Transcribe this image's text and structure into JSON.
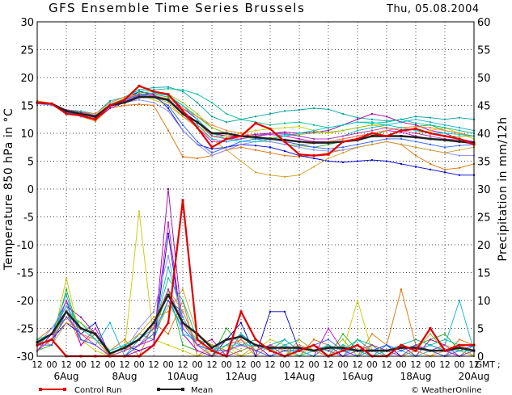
{
  "header": {
    "title": "GFS Ensemble Time Series Brussels",
    "date": "Thu, 05.08.2004"
  },
  "legend": {
    "control_label": "Control Run",
    "mean_label": "Mean",
    "credit": "© WeatherOnline"
  },
  "colors": {
    "control": "#e00000",
    "mean": "#202020",
    "members": [
      "#00a0a0",
      "#20b020",
      "#e07000",
      "#0000d0",
      "#a000a0",
      "#c8c800",
      "#00c090",
      "#d000d0",
      "#8888ff",
      "#d0a020",
      "#10b0d0",
      "#90c020",
      "#ff8040",
      "#3060ff",
      "#00d0d0",
      "#b040b0"
    ]
  },
  "chart_data": {
    "type": "line",
    "x_unit": "12-hour steps from 05 Aug 12 GMT to 20 Aug 12 GMT (31 steps)",
    "x_tick_labels": [
      "12",
      "00",
      "12",
      "00",
      "12",
      "00",
      "12",
      "00",
      "12",
      "00",
      "12",
      "00",
      "12",
      "00",
      "12",
      "00",
      "12",
      "00",
      "12",
      "00",
      "12",
      "00",
      "12",
      "00",
      "12",
      "00",
      "12",
      "00",
      "12",
      "00",
      "12"
    ],
    "x_day_labels": [
      "6Aug",
      "8Aug",
      "10Aug",
      "12Aug",
      "14Aug",
      "16Aug",
      "18Aug",
      "20Aug"
    ],
    "x_day_positions": [
      2,
      6,
      10,
      14,
      18,
      22,
      26,
      30
    ],
    "gmt_label": "GMT ;",
    "y_left": {
      "label": "Temperature 850 hPa in °C",
      "range": [
        -30,
        30
      ],
      "ticks": [
        30,
        25,
        20,
        15,
        10,
        5,
        0,
        -5,
        -10,
        -15,
        -20,
        -25,
        -30
      ]
    },
    "y_right": {
      "label": "Precipitation in mm/12h",
      "range": [
        0,
        60
      ],
      "ticks": [
        60,
        55,
        50,
        45,
        40,
        35,
        30,
        25,
        20,
        15,
        10,
        5,
        0
      ]
    },
    "grid": true,
    "temperature": {
      "control": [
        15.5,
        15.3,
        13.5,
        13.2,
        12.5,
        15.0,
        16.0,
        18.5,
        17.5,
        17.0,
        14.0,
        11.0,
        7.5,
        9.0,
        9.5,
        11.8,
        10.8,
        8.5,
        6.2,
        6.0,
        6.2,
        8.5,
        9.0,
        10.0,
        9.5,
        10.5,
        10.8,
        10.0,
        9.5,
        9.0,
        8.0
      ],
      "mean": [
        15.5,
        15.3,
        14.0,
        13.5,
        13.0,
        15.0,
        15.5,
        16.5,
        16.5,
        16.0,
        13.5,
        12.0,
        10.0,
        10.0,
        9.5,
        9.3,
        9.0,
        8.8,
        8.5,
        8.3,
        8.3,
        8.5,
        8.8,
        9.5,
        9.5,
        9.5,
        9.3,
        9.0,
        8.8,
        8.5,
        8.3
      ],
      "members": [
        [
          15.5,
          15.3,
          14.2,
          13.8,
          13.5,
          15.8,
          16.5,
          17.8,
          18.2,
          18.3,
          17.5,
          15.5,
          13.0,
          12.0,
          12.5,
          13.0,
          13.5,
          14.0,
          14.2,
          14.5,
          14.3,
          13.5,
          12.8,
          12.5,
          12.2,
          12.5,
          13.0,
          12.8,
          12.5,
          12.8,
          12.5
        ],
        [
          15.5,
          15.2,
          13.8,
          13.5,
          12.8,
          15.0,
          16.0,
          17.5,
          17.0,
          16.5,
          15.0,
          13.0,
          11.0,
          10.0,
          9.5,
          9.0,
          8.5,
          8.0,
          7.8,
          7.5,
          8.0,
          8.5,
          9.0,
          9.5,
          10.5,
          11.0,
          11.2,
          11.5,
          10.5,
          10.0,
          9.5
        ],
        [
          15.8,
          15.4,
          14.0,
          13.0,
          12.2,
          14.5,
          15.0,
          15.2,
          15.0,
          10.5,
          5.8,
          5.5,
          6.0,
          7.0,
          7.5,
          7.0,
          6.5,
          6.0,
          5.8,
          6.0,
          6.5,
          7.0,
          7.5,
          8.0,
          8.5,
          8.0,
          6.0,
          4.5,
          3.5,
          3.8,
          4.5
        ],
        [
          15.3,
          15.2,
          13.8,
          13.5,
          12.8,
          15.0,
          16.0,
          17.5,
          17.0,
          14.5,
          10.5,
          8.0,
          7.2,
          7.5,
          8.0,
          7.8,
          7.5,
          6.8,
          6.0,
          5.5,
          5.0,
          4.8,
          5.0,
          5.2,
          5.0,
          4.5,
          4.0,
          3.5,
          3.0,
          2.5,
          2.5
        ],
        [
          15.5,
          15.3,
          14.0,
          13.2,
          12.5,
          14.5,
          15.5,
          16.8,
          17.2,
          16.8,
          14.5,
          12.5,
          10.0,
          9.5,
          9.5,
          9.8,
          10.0,
          10.2,
          10.0,
          10.2,
          10.5,
          11.5,
          12.5,
          13.5,
          13.0,
          12.0,
          11.5,
          10.5,
          10.0,
          9.0,
          8.5
        ],
        [
          15.5,
          15.2,
          13.8,
          13.5,
          12.8,
          15.0,
          16.0,
          17.0,
          16.0,
          15.0,
          13.0,
          11.5,
          9.5,
          9.5,
          10.0,
          10.5,
          10.8,
          11.0,
          11.2,
          10.5,
          10.0,
          10.5,
          11.0,
          11.5,
          11.0,
          10.5,
          10.0,
          10.5,
          11.0,
          10.0,
          9.0
        ],
        [
          15.5,
          15.3,
          14.2,
          14.0,
          13.5,
          15.5,
          16.5,
          17.5,
          17.8,
          18.0,
          17.8,
          17.0,
          15.5,
          13.5,
          12.5,
          12.0,
          11.5,
          11.8,
          12.0,
          11.5,
          11.0,
          11.5,
          12.0,
          11.8,
          12.0,
          12.5,
          11.8,
          11.5,
          11.0,
          10.5,
          10.0
        ],
        [
          15.5,
          15.2,
          14.0,
          13.5,
          12.8,
          15.0,
          15.8,
          16.5,
          16.8,
          16.0,
          13.5,
          11.0,
          8.5,
          8.5,
          9.0,
          9.5,
          9.8,
          9.5,
          9.0,
          8.5,
          8.5,
          9.0,
          9.5,
          10.0,
          10.5,
          10.2,
          9.5,
          9.0,
          8.8,
          8.5,
          8.0
        ],
        [
          15.3,
          15.0,
          13.8,
          13.0,
          12.5,
          14.8,
          15.5,
          16.0,
          15.5,
          14.0,
          10.5,
          8.0,
          6.0,
          7.0,
          8.0,
          8.5,
          8.5,
          8.0,
          7.5,
          7.0,
          6.8,
          7.0,
          7.5,
          8.0,
          8.5,
          8.0,
          7.5,
          7.0,
          6.5,
          6.0,
          6.0
        ],
        [
          15.5,
          15.3,
          14.2,
          13.8,
          13.2,
          15.2,
          16.2,
          16.8,
          16.5,
          15.5,
          13.0,
          11.0,
          9.0,
          7.0,
          5.0,
          3.0,
          2.5,
          2.2,
          2.5,
          4.0,
          5.5,
          6.5,
          7.5,
          8.0,
          8.5,
          8.0,
          7.5,
          7.0,
          6.5,
          7.0,
          7.5
        ],
        [
          15.5,
          15.3,
          14.0,
          13.5,
          13.0,
          15.0,
          16.0,
          17.0,
          16.5,
          15.8,
          13.5,
          11.5,
          9.0,
          8.5,
          9.0,
          9.5,
          10.0,
          9.8,
          9.5,
          9.0,
          9.0,
          9.5,
          10.5,
          11.0,
          11.5,
          12.0,
          12.5,
          12.0,
          11.5,
          11.0,
          10.5
        ],
        [
          15.5,
          15.2,
          14.0,
          13.8,
          13.2,
          15.2,
          16.2,
          17.2,
          17.5,
          17.0,
          15.5,
          13.5,
          11.0,
          10.0,
          9.5,
          9.0,
          9.2,
          9.5,
          9.8,
          10.0,
          10.2,
          10.5,
          11.0,
          11.5,
          11.5,
          11.0,
          10.5,
          10.0,
          9.5,
          9.5,
          9.5
        ],
        [
          15.5,
          15.3,
          14.2,
          13.8,
          13.5,
          15.5,
          16.5,
          17.0,
          16.8,
          16.2,
          14.5,
          13.0,
          11.5,
          10.5,
          10.0,
          9.5,
          9.0,
          8.5,
          8.0,
          8.2,
          8.5,
          9.0,
          9.5,
          10.0,
          10.5,
          11.0,
          11.2,
          11.0,
          10.5,
          10.0,
          9.5
        ],
        [
          15.5,
          15.2,
          13.8,
          13.2,
          12.5,
          14.8,
          15.8,
          16.8,
          16.5,
          15.0,
          11.5,
          8.5,
          6.5,
          7.5,
          8.5,
          9.0,
          9.0,
          8.5,
          8.0,
          7.5,
          7.2,
          7.5,
          8.0,
          8.5,
          9.0,
          9.0,
          8.5,
          8.0,
          7.5,
          7.8,
          8.0
        ],
        [
          15.5,
          15.3,
          14.0,
          13.5,
          13.0,
          15.2,
          16.0,
          17.0,
          17.2,
          16.8,
          15.0,
          12.5,
          10.0,
          9.0,
          8.5,
          8.5,
          9.0,
          9.5,
          10.0,
          10.5,
          11.0,
          11.5,
          12.0,
          12.0,
          11.5,
          11.0,
          10.5,
          10.0,
          10.0,
          9.8,
          9.5
        ],
        [
          15.5,
          15.3,
          14.2,
          13.8,
          13.2,
          15.0,
          16.0,
          17.0,
          16.8,
          16.0,
          14.0,
          12.0,
          9.5,
          9.0,
          9.0,
          9.5,
          10.0,
          10.0,
          9.5,
          9.0,
          9.0,
          9.5,
          10.0,
          10.5,
          11.0,
          10.5,
          10.0,
          9.5,
          9.0,
          8.8,
          8.5
        ]
      ]
    },
    "precipitation": {
      "control": [
        2,
        3,
        0,
        0,
        0,
        0,
        0,
        0,
        2,
        6,
        28,
        3,
        1,
        0,
        8,
        3,
        1,
        0,
        1,
        2,
        0,
        1,
        2,
        0,
        0,
        2,
        1,
        5,
        1,
        2,
        2
      ],
      "mean": [
        2.5,
        4,
        8,
        5,
        4,
        0.5,
        1.5,
        3,
        6,
        11,
        6,
        4,
        1.5,
        3,
        3.5,
        2,
        1.5,
        1.5,
        1.5,
        1,
        1.5,
        1.5,
        1,
        1,
        1,
        1.5,
        1.5,
        1,
        1,
        1.5,
        1
      ],
      "members": [
        [
          2,
          4,
          10,
          5,
          3,
          0,
          1,
          4,
          3,
          10,
          8,
          2,
          1,
          2,
          4,
          2,
          1,
          3,
          1,
          2,
          1,
          0,
          3,
          1,
          0,
          2,
          3,
          2,
          1,
          0,
          2
        ],
        [
          1,
          2,
          12,
          3,
          2,
          0,
          0,
          2,
          4,
          12,
          2,
          1,
          0,
          5,
          2,
          3,
          1,
          0,
          2,
          1,
          0,
          4,
          1,
          2,
          0,
          1,
          2,
          3,
          4,
          1,
          1
        ],
        [
          3,
          5,
          8,
          2,
          4,
          1,
          3,
          0,
          6,
          4,
          10,
          0,
          2,
          1,
          3,
          0,
          2,
          1,
          0,
          3,
          2,
          1,
          0,
          4,
          2,
          12,
          2,
          1,
          0,
          3,
          2
        ],
        [
          2,
          3,
          6,
          4,
          6,
          0,
          2,
          1,
          2,
          22,
          4,
          1,
          0,
          3,
          6,
          0,
          8,
          8,
          1,
          0,
          2,
          0,
          1,
          1,
          2,
          0,
          1,
          2,
          1,
          0,
          1
        ],
        [
          1,
          4,
          9,
          7,
          4,
          0,
          0,
          1,
          2,
          30,
          5,
          2,
          3,
          0,
          1,
          2,
          0,
          1,
          2,
          1,
          0,
          2,
          1,
          0,
          1,
          2,
          0,
          3,
          2,
          1,
          2
        ],
        [
          2,
          2,
          14,
          3,
          1,
          0,
          1,
          26,
          3,
          2,
          1,
          0,
          1,
          2,
          0,
          1,
          3,
          2,
          0,
          1,
          2,
          1,
          10,
          1,
          0,
          2,
          1,
          0,
          2,
          1,
          0
        ],
        [
          3,
          4,
          7,
          6,
          3,
          1,
          2,
          3,
          5,
          14,
          10,
          3,
          2,
          1,
          2,
          3,
          1,
          2,
          3,
          1,
          2,
          1,
          3,
          2,
          1,
          2,
          1,
          2,
          3,
          2,
          2
        ],
        [
          1,
          3,
          10,
          2,
          5,
          0,
          0,
          2,
          3,
          24,
          4,
          1,
          0,
          2,
          3,
          1,
          2,
          1,
          1,
          0,
          5,
          1,
          0,
          2,
          1,
          0,
          1,
          2,
          1,
          0,
          1
        ],
        [
          2,
          5,
          9,
          4,
          2,
          0,
          1,
          5,
          8,
          18,
          6,
          2,
          1,
          3,
          2,
          1,
          0,
          2,
          1,
          2,
          1,
          0,
          2,
          1,
          0,
          1,
          2,
          1,
          0,
          2,
          1
        ],
        [
          3,
          2,
          6,
          5,
          3,
          0,
          2,
          4,
          7,
          8,
          12,
          4,
          2,
          1,
          0,
          2,
          1,
          0,
          3,
          1,
          0,
          2,
          1,
          0,
          1,
          0,
          2,
          1,
          0,
          1,
          0
        ],
        [
          2,
          4,
          11,
          3,
          2,
          6,
          0,
          3,
          5,
          16,
          7,
          2,
          1,
          0,
          4,
          1,
          2,
          3,
          1,
          0,
          2,
          1,
          1,
          0,
          2,
          1,
          0,
          1,
          2,
          10,
          1
        ],
        [
          1,
          3,
          8,
          6,
          4,
          0,
          1,
          2,
          4,
          9,
          6,
          3,
          0,
          2,
          1,
          2,
          1,
          1,
          0,
          2,
          1,
          3,
          0,
          2,
          1,
          0,
          1,
          4,
          1,
          2,
          0
        ],
        [
          2,
          3,
          7,
          4,
          3,
          0,
          1,
          3,
          6,
          12,
          8,
          2,
          1,
          2,
          3,
          1,
          2,
          1,
          2,
          1,
          0,
          1,
          2,
          1,
          1,
          2,
          1,
          0,
          1,
          2,
          1
        ],
        [
          2,
          2,
          8,
          3,
          2,
          0,
          0,
          2,
          4,
          10,
          5,
          2,
          1,
          1,
          2,
          1,
          0,
          1,
          1,
          2,
          3,
          1,
          0,
          1,
          2,
          1,
          2,
          1,
          0,
          1,
          2
        ],
        [
          3,
          4,
          9,
          5,
          3,
          1,
          2,
          3,
          6,
          11,
          4,
          3,
          1,
          2,
          2,
          2,
          1,
          2,
          0,
          1,
          1,
          2,
          1,
          0,
          1,
          2,
          1,
          2,
          1,
          1,
          1
        ],
        [
          1,
          3,
          7,
          4,
          2,
          0,
          1,
          2,
          5,
          12,
          6,
          2,
          0,
          1,
          2,
          1,
          2,
          0,
          1,
          2,
          1,
          0,
          1,
          2,
          1,
          0,
          2,
          1,
          2,
          0,
          1
        ]
      ]
    }
  }
}
